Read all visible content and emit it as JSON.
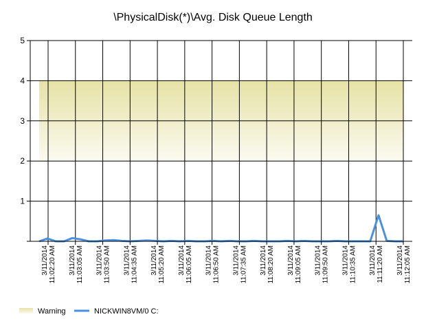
{
  "chart_data": {
    "type": "line",
    "title": "\\PhysicalDisk(*)\\Avg. Disk Queue Length",
    "ylim": [
      0,
      5
    ],
    "y_ticks": [
      0,
      1,
      2,
      3,
      4,
      5
    ],
    "grid": true,
    "x_tick_labels": [
      [
        "3/11/2014",
        "11:02:20 AM"
      ],
      [
        "3/11/2014",
        "11:03:05 AM"
      ],
      [
        "3/11/2014",
        "11:03:50 AM"
      ],
      [
        "3/11/2014",
        "11:04:35 AM"
      ],
      [
        "3/11/2014",
        "11:05:20 AM"
      ],
      [
        "3/11/2014",
        "11:06:05 AM"
      ],
      [
        "3/11/2014",
        "11:06:50 AM"
      ],
      [
        "3/11/2014",
        "11:07:35 AM"
      ],
      [
        "3/11/2014",
        "11:08:20 AM"
      ],
      [
        "3/11/2014",
        "11:09:05 AM"
      ],
      [
        "3/11/2014",
        "11:09:50 AM"
      ],
      [
        "3/11/2014",
        "11:10:35 AM"
      ],
      [
        "3/11/2014",
        "11:11:20 AM"
      ],
      [
        "3/11/2014",
        "11:12:05 AM"
      ]
    ],
    "warning_band": {
      "name": "Warning",
      "from": 2,
      "to": 4,
      "color_top": "#e6e2a6",
      "color_bottom": "#fbfaf0"
    },
    "series": [
      {
        "name": "NICKWIN8VM/0 C:",
        "color": "#4a8fe0",
        "values": [
          0.0,
          0.07,
          0.0,
          0.0,
          0.08,
          0.05,
          0.0,
          0.0,
          0.02,
          0.03,
          0.01,
          0.0,
          0.01,
          0.02,
          0.01,
          0.0,
          0.01,
          0.0,
          0.01,
          0.0,
          0.0,
          0.01,
          0.0,
          0.01,
          0.0,
          0.0,
          0.01,
          0.0,
          0.0,
          0.0,
          0.01,
          0.0,
          0.01,
          0.0,
          0.0,
          0.0,
          0.01,
          0.0,
          0.0,
          0.0,
          0.0,
          0.65,
          0.01,
          0.0,
          0.0
        ]
      }
    ],
    "legend_position": "bottom-left"
  }
}
